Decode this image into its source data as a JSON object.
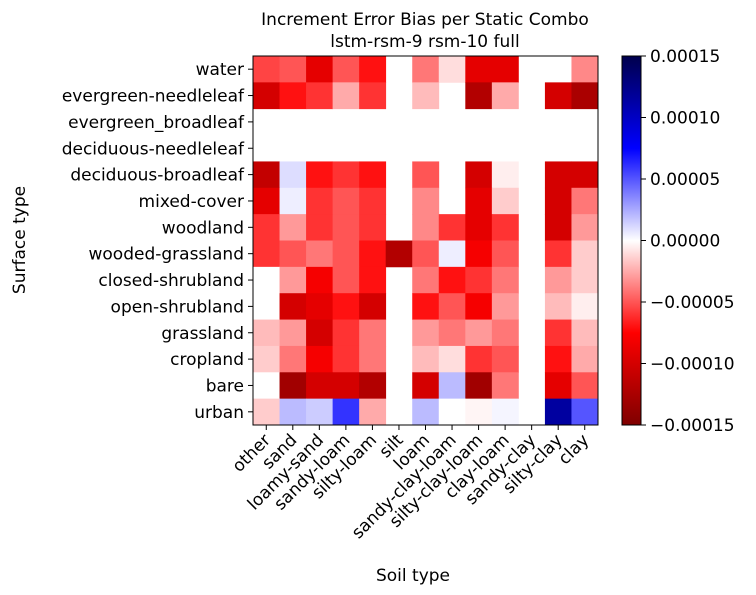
{
  "chart_data": {
    "type": "heatmap",
    "title": "Increment Error Bias per Static Combo",
    "subtitle": "lstm-rsm-9 rsm-10 full",
    "xlabel": "Soil type",
    "ylabel": "Surface type",
    "x_categories": [
      "other",
      "sand",
      "loamy-sand",
      "sandy-loam",
      "silty-loam",
      "silt",
      "loam",
      "sandy-clay-loam",
      "silty-clay-loam",
      "clay-loam",
      "sandy-clay",
      "silty-clay",
      "clay"
    ],
    "y_categories": [
      "water",
      "evergreen-needleleaf",
      "evergreen_broadleaf",
      "deciduous-needleleaf",
      "deciduous-broadleaf",
      "mixed-cover",
      "woodland",
      "wooded-grassland",
      "closed-shrubland",
      "open-shrubland",
      "grassland",
      "cropland",
      "bare",
      "urban"
    ],
    "values": [
      [
        -5.5e-05,
        -5e-05,
        -9e-05,
        -5e-05,
        -7e-05,
        null,
        -4e-05,
        -1e-05,
        -9e-05,
        -9e-05,
        null,
        null,
        -3.5e-05
      ],
      [
        -0.0001,
        -7e-05,
        -6e-05,
        -2.5e-05,
        -6e-05,
        null,
        -2e-05,
        null,
        -0.00012,
        -2.5e-05,
        null,
        -0.0001,
        -0.000125
      ],
      [
        null,
        null,
        null,
        null,
        null,
        null,
        null,
        null,
        null,
        null,
        null,
        null,
        null
      ],
      [
        null,
        null,
        null,
        null,
        null,
        null,
        null,
        null,
        null,
        null,
        null,
        null,
        null
      ],
      [
        -0.00011,
        1e-05,
        -7e-05,
        -6e-05,
        -7e-05,
        null,
        -5e-05,
        null,
        -0.0001,
        -5e-06,
        null,
        -0.0001,
        -0.0001
      ],
      [
        -9e-05,
        5e-06,
        -6e-05,
        -5e-05,
        -6e-05,
        null,
        -3.5e-05,
        null,
        -9e-05,
        -1.5e-05,
        null,
        -0.0001,
        -4e-05
      ],
      [
        -6e-05,
        -3e-05,
        -6e-05,
        -5e-05,
        -6e-05,
        null,
        -3.5e-05,
        -6e-05,
        -9e-05,
        -6e-05,
        null,
        -0.0001,
        -3e-05
      ],
      [
        -6e-05,
        -5e-05,
        -4e-05,
        -5e-05,
        -7e-05,
        -0.00012,
        -5e-05,
        5e-06,
        -8e-05,
        -5e-05,
        null,
        -6e-05,
        -1.5e-05
      ],
      [
        0,
        -3e-05,
        -8e-05,
        -5e-05,
        -7e-05,
        null,
        -4e-05,
        -7e-05,
        -6e-05,
        -4e-05,
        null,
        -3e-05,
        -1.5e-05
      ],
      [
        null,
        -0.0001,
        -9e-05,
        -7e-05,
        -0.0001,
        null,
        -7e-05,
        -5e-05,
        -8e-05,
        -3e-05,
        null,
        -2e-05,
        -5e-06
      ],
      [
        -2e-05,
        -3e-05,
        -0.0001,
        -6e-05,
        -4e-05,
        null,
        -3e-05,
        -4e-05,
        -3e-05,
        -4e-05,
        null,
        -6e-05,
        -2e-05
      ],
      [
        -1.5e-05,
        -4e-05,
        -8e-05,
        -6e-05,
        -4e-05,
        null,
        -2e-05,
        -1e-05,
        -6e-05,
        -5e-05,
        null,
        -7e-05,
        -2.5e-05
      ],
      [
        0,
        -0.00013,
        -0.0001,
        -0.0001,
        -0.00012,
        null,
        -0.0001,
        2e-05,
        -0.00013,
        -4e-05,
        null,
        -9e-05,
        -5e-05
      ],
      [
        -1.5e-05,
        2e-05,
        1.5e-05,
        6e-05,
        -2.5e-05,
        null,
        2e-05,
        0,
        -3e-06,
        3e-06,
        null,
        0.000115,
        5e-05
      ]
    ],
    "colorbar": {
      "colormap": "seismic_r",
      "vmin": -0.00015,
      "vmax": 0.00015,
      "ticks": [
        "0.00015",
        "0.00010",
        "0.00005",
        "0.00000",
        "−0.00005",
        "−0.00010",
        "−0.00015"
      ],
      "tick_values": [
        0.00015,
        0.0001,
        5e-05,
        0,
        -5e-05,
        -0.0001,
        -0.00015
      ]
    }
  }
}
